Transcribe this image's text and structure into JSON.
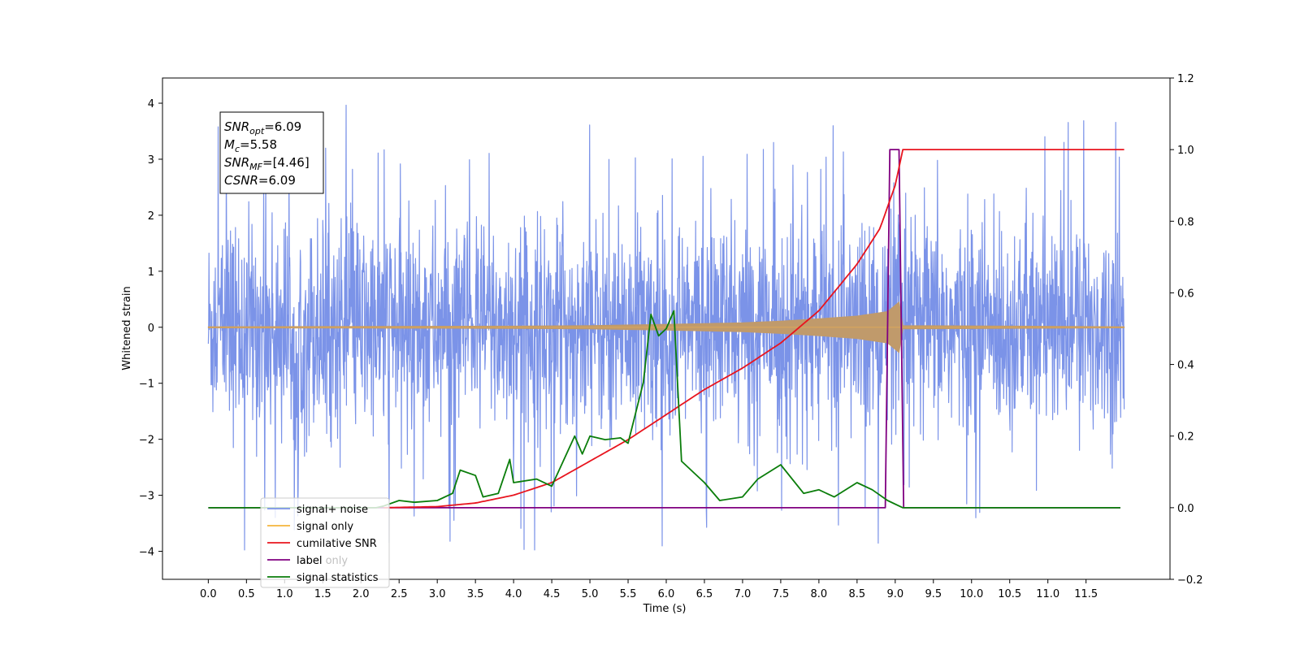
{
  "chart_data": {
    "type": "line",
    "xlabel": "Time (s)",
    "ylabel": "Whitened strain",
    "xlim": [
      -0.6,
      12.6
    ],
    "ylim": [
      -4.5,
      4.45
    ],
    "y2lim": [
      -0.2,
      1.2
    ],
    "x_ticks": [
      0.0,
      0.5,
      1.0,
      1.5,
      2.0,
      2.5,
      3.0,
      3.5,
      4.0,
      4.5,
      5.0,
      5.5,
      6.0,
      6.5,
      7.0,
      7.5,
      8.0,
      8.5,
      9.0,
      9.5,
      10.0,
      10.5,
      11.0,
      11.5
    ],
    "y_ticks": [
      -4,
      -3,
      -2,
      -1,
      0,
      1,
      2,
      3,
      4
    ],
    "y2_ticks": [
      -0.2,
      0.0,
      0.2,
      0.4,
      0.6,
      0.8,
      1.0,
      1.2
    ],
    "legend_position": "lower-left",
    "annotation": [
      {
        "sym": "SNR",
        "sub": "opt",
        "val": "=6.09"
      },
      {
        "sym": "M",
        "sub": "c",
        "val": "=5.58"
      },
      {
        "sym": "SNR",
        "sub": "MF",
        "val": "=[4.46]"
      },
      {
        "sym": "CSNR",
        "sub": "",
        "val": "=6.09"
      }
    ],
    "series": [
      {
        "name": "signal+ noise",
        "color": "#7b93e8",
        "axis": "left",
        "description_values": {
          "x_range": [
            0.0,
            12.0
          ],
          "mean": 0.0,
          "typical_min": -2.5,
          "typical_max": 2.8,
          "peak_max": 4.05,
          "peak_min": -4.1
        }
      },
      {
        "name": "signal only",
        "color": "#f5b43c",
        "axis": "left",
        "envelope": {
          "x": [
            0.0,
            2.0,
            4.0,
            5.0,
            6.0,
            7.0,
            7.5,
            8.0,
            8.5,
            8.9,
            9.05,
            9.1,
            12.0
          ],
          "amp": [
            0.01,
            0.015,
            0.02,
            0.03,
            0.05,
            0.08,
            0.11,
            0.15,
            0.2,
            0.28,
            0.45,
            0.03,
            0.01
          ]
        }
      },
      {
        "name": "cumilative SNR",
        "color": "#e8141e",
        "axis": "right",
        "x": [
          2.3,
          3.0,
          3.5,
          4.0,
          4.5,
          5.0,
          5.5,
          6.0,
          6.5,
          7.0,
          7.5,
          8.0,
          8.5,
          8.8,
          9.0,
          9.1,
          12.0
        ],
        "values": [
          0.0,
          0.003,
          0.013,
          0.035,
          0.07,
          0.13,
          0.19,
          0.26,
          0.33,
          0.39,
          0.46,
          0.55,
          0.68,
          0.78,
          0.9,
          1.0,
          1.0
        ]
      },
      {
        "name": "label",
        "color": "#800080",
        "axis": "right",
        "x": [
          0.0,
          8.87,
          8.93,
          9.05,
          9.11,
          11.95
        ],
        "values": [
          0.0,
          0.0,
          1.0,
          1.0,
          0.0,
          0.0
        ]
      },
      {
        "name": "signal statistics",
        "color": "#0a7d0a",
        "axis": "right",
        "x": [
          0.0,
          2.2,
          2.3,
          2.5,
          2.7,
          3.0,
          3.2,
          3.3,
          3.5,
          3.6,
          3.8,
          3.95,
          4.0,
          4.3,
          4.5,
          4.8,
          4.9,
          5.0,
          5.2,
          5.4,
          5.5,
          5.7,
          5.8,
          5.9,
          6.0,
          6.1,
          6.2,
          6.5,
          6.7,
          7.0,
          7.2,
          7.5,
          7.8,
          8.0,
          8.2,
          8.5,
          8.7,
          8.9,
          9.1,
          11.95
        ],
        "values": [
          0.0,
          0.0,
          0.005,
          0.02,
          0.015,
          0.02,
          0.04,
          0.105,
          0.09,
          0.03,
          0.04,
          0.135,
          0.07,
          0.08,
          0.06,
          0.2,
          0.15,
          0.2,
          0.19,
          0.195,
          0.18,
          0.35,
          0.54,
          0.48,
          0.5,
          0.55,
          0.13,
          0.07,
          0.02,
          0.03,
          0.08,
          0.12,
          0.04,
          0.05,
          0.03,
          0.07,
          0.05,
          0.02,
          0.0,
          0.0
        ]
      }
    ]
  },
  "legend_overlay_text": "label only"
}
